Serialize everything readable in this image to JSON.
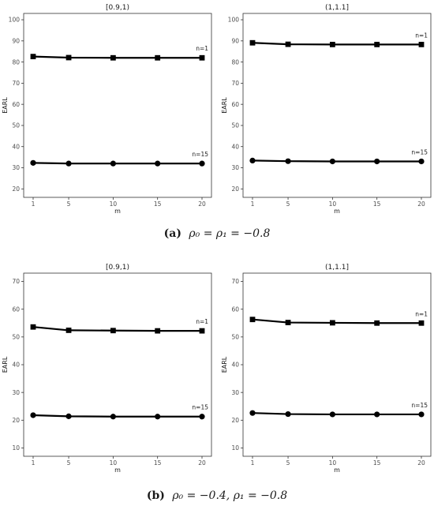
{
  "chart_data": [
    {
      "type": "line",
      "title": "[0.9,1)",
      "xlabel": "m",
      "ylabel": "EARL",
      "x": [
        1,
        5,
        10,
        15,
        20
      ],
      "xticks": [
        1,
        5,
        10,
        15,
        20
      ],
      "ylim": [
        16,
        103
      ],
      "yticks": [
        20,
        30,
        40,
        50,
        60,
        70,
        80,
        90,
        100
      ],
      "grid": false,
      "series": [
        {
          "name": "n=1",
          "marker": "square",
          "values": [
            82.6,
            82.1,
            82.0,
            82.0,
            82.0
          ]
        },
        {
          "name": "n=15",
          "marker": "circle",
          "values": [
            32.3,
            32.0,
            32.0,
            32.0,
            32.0
          ]
        }
      ]
    },
    {
      "type": "line",
      "title": "(1,1.1]",
      "xlabel": "m",
      "ylabel": "EARL",
      "x": [
        1,
        5,
        10,
        15,
        20
      ],
      "xticks": [
        1,
        5,
        10,
        15,
        20
      ],
      "ylim": [
        16,
        103
      ],
      "yticks": [
        20,
        30,
        40,
        50,
        60,
        70,
        80,
        90,
        100
      ],
      "grid": false,
      "series": [
        {
          "name": "n=1",
          "marker": "square",
          "values": [
            89.1,
            88.4,
            88.3,
            88.3,
            88.3
          ]
        },
        {
          "name": "n=15",
          "marker": "circle",
          "values": [
            33.4,
            33.1,
            33.0,
            33.0,
            33.0
          ]
        }
      ]
    },
    {
      "type": "line",
      "title": "[0.9,1)",
      "xlabel": "m",
      "ylabel": "EARL",
      "x": [
        1,
        5,
        10,
        15,
        20
      ],
      "xticks": [
        1,
        5,
        10,
        15,
        20
      ],
      "ylim": [
        7,
        73
      ],
      "yticks": [
        10,
        20,
        30,
        40,
        50,
        60,
        70
      ],
      "grid": false,
      "series": [
        {
          "name": "n=1",
          "marker": "square",
          "values": [
            53.6,
            52.4,
            52.3,
            52.2,
            52.2
          ]
        },
        {
          "name": "n=15",
          "marker": "circle",
          "values": [
            21.8,
            21.4,
            21.3,
            21.3,
            21.3
          ]
        }
      ]
    },
    {
      "type": "line",
      "title": "(1,1.1]",
      "xlabel": "m",
      "ylabel": "EARL",
      "x": [
        1,
        5,
        10,
        15,
        20
      ],
      "xticks": [
        1,
        5,
        10,
        15,
        20
      ],
      "ylim": [
        7,
        73
      ],
      "yticks": [
        10,
        20,
        30,
        40,
        50,
        60,
        70
      ],
      "grid": false,
      "series": [
        {
          "name": "n=1",
          "marker": "square",
          "values": [
            56.3,
            55.2,
            55.1,
            55.0,
            55.0
          ]
        },
        {
          "name": "n=15",
          "marker": "circle",
          "values": [
            22.6,
            22.2,
            22.1,
            22.1,
            22.1
          ]
        }
      ]
    }
  ],
  "captions": {
    "a": {
      "letter": "(a)",
      "math": "ρ₀ = ρ₁ = −0.8"
    },
    "b": {
      "letter": "(b)",
      "math": "ρ₀ = −0.4, ρ₁ = −0.8"
    }
  }
}
